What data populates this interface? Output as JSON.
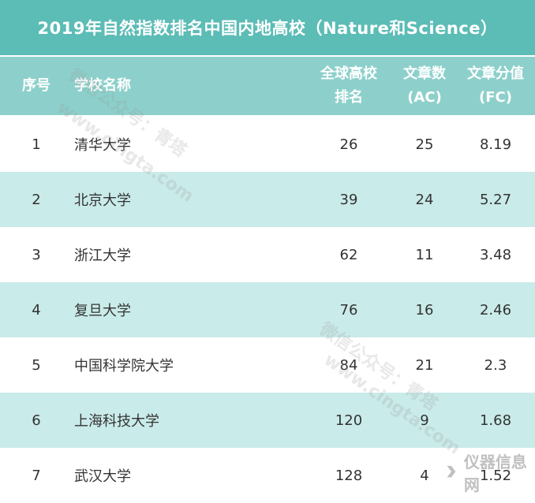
{
  "title": "2019年自然指数排名中国内地高校（Nature和Science）",
  "headers": {
    "rank_no": "序号",
    "school": "学校名称",
    "global_rank": [
      "全球高校",
      "排名"
    ],
    "ac": [
      "文章数",
      "(AC)"
    ],
    "fc": [
      "文章分值",
      "(FC)"
    ]
  },
  "rows": [
    {
      "no": "1",
      "school": "清华大学",
      "global_rank": "26",
      "ac": "25",
      "fc": "8.19"
    },
    {
      "no": "2",
      "school": "北京大学",
      "global_rank": "39",
      "ac": "24",
      "fc": "5.27"
    },
    {
      "no": "3",
      "school": "浙江大学",
      "global_rank": "62",
      "ac": "11",
      "fc": "3.48"
    },
    {
      "no": "4",
      "school": "复旦大学",
      "global_rank": "76",
      "ac": "16",
      "fc": "2.46"
    },
    {
      "no": "5",
      "school": "中国科学院大学",
      "global_rank": "84",
      "ac": "21",
      "fc": "2.3"
    },
    {
      "no": "6",
      "school": "上海科技大学",
      "global_rank": "120",
      "ac": "9",
      "fc": "1.68"
    },
    {
      "no": "7",
      "school": "武汉大学",
      "global_rank": "128",
      "ac": "4",
      "fc": "1.52"
    }
  ],
  "watermarks": {
    "text1": "微信公众号：青塔",
    "text2": "www.cingta.com"
  },
  "logo": {
    "icon": "instrument-logo-icon",
    "text": "仪器信息网"
  },
  "colors": {
    "title_bg": "#5cbcb6",
    "header_bg": "#8dd0cb",
    "alt_row_bg": "#c9ebe9"
  }
}
